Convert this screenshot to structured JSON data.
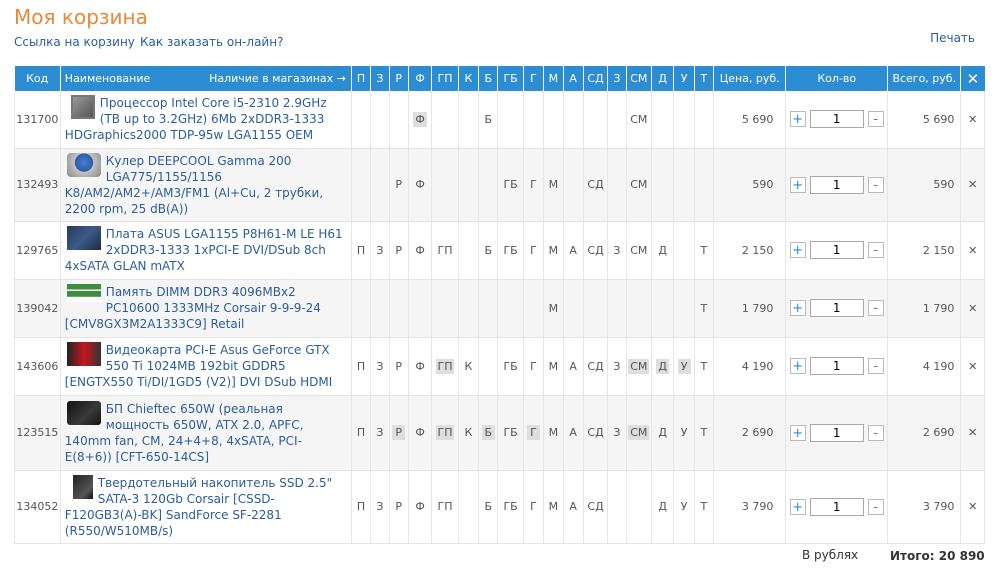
{
  "page": {
    "title": "Моя корзина",
    "cart_link": "Ссылка на корзину",
    "how_to_order": "Как заказать он-лайн?",
    "print": "Печать"
  },
  "table": {
    "headers": {
      "code": "Код",
      "name": "Наименование",
      "availability": "Наличие в магазинах →",
      "stores": [
        "П",
        "З",
        "Р",
        "Ф",
        "ГП",
        "К",
        "Б",
        "ГБ",
        "Г",
        "М",
        "А",
        "СД",
        "З",
        "СМ",
        "Д",
        "У",
        "Т"
      ],
      "price": "Цена, руб.",
      "qty": "Кол-во",
      "total": "Всего, руб.",
      "remove": "✕"
    },
    "rows": [
      {
        "code": "131700",
        "icon": "cpu-icon",
        "name": "Процессор Intel Core i5-2310 2.9GHz (TB up to 3.2GHz) 6Mb 2xDDR3-1333 HDGraphics2000 TDP-95w LGA1155 OEM",
        "stores": [
          "",
          "",
          "",
          "Ф",
          "",
          "",
          "Б",
          "",
          "",
          "",
          "",
          "",
          "",
          "СМ",
          "",
          "",
          ""
        ],
        "hl": [
          3
        ],
        "price": "5 690",
        "qty": "1",
        "total": "5 690"
      },
      {
        "code": "132493",
        "icon": "cooler-icon",
        "name": "Кулер DEEPCOOL Gamma 200 LGA775/1155/1156 K8/AM2/AM2+/AM3/FM1 (Al+Cu, 2 трубки, 2200 rpm, 25 dB(A))",
        "stores": [
          "",
          "",
          "Р",
          "Ф",
          "",
          "",
          "",
          "ГБ",
          "Г",
          "М",
          "",
          "СД",
          "",
          "СМ",
          "",
          "",
          ""
        ],
        "hl": [],
        "price": "590",
        "qty": "1",
        "total": "590"
      },
      {
        "code": "129765",
        "icon": "motherboard-icon",
        "name": "Плата ASUS LGA1155 P8H61-M LE H61 2xDDR3-1333 1xPCI-E DVI/DSub 8ch 4xSATA GLAN mATX",
        "stores": [
          "П",
          "З",
          "Р",
          "Ф",
          "ГП",
          "",
          "Б",
          "ГБ",
          "Г",
          "М",
          "А",
          "СД",
          "З",
          "СМ",
          "Д",
          "",
          "Т"
        ],
        "hl": [],
        "price": "2 150",
        "qty": "1",
        "total": "2 150"
      },
      {
        "code": "139042",
        "icon": "memory-icon",
        "name": "Память DIMM DDR3 4096MBx2 PC10600 1333MHz Corsair 9-9-9-24 [CMV8GX3M2A1333C9] Retail",
        "stores": [
          "",
          "",
          "",
          "",
          "",
          "",
          "",
          "",
          "",
          "М",
          "",
          "",
          "",
          "",
          "",
          "",
          "Т"
        ],
        "hl": [],
        "price": "1 790",
        "qty": "1",
        "total": "1 790"
      },
      {
        "code": "143606",
        "icon": "videocard-icon",
        "name": "Видеокарта PCI-E Asus GeForce GTX 550 Ti 1024MB 192bit GDDR5 [ENGTX550 Ti/DI/1GD5 (V2)] DVI DSub HDMI",
        "stores": [
          "П",
          "З",
          "Р",
          "Ф",
          "ГП",
          "К",
          "",
          "ГБ",
          "Г",
          "М",
          "А",
          "СД",
          "З",
          "СМ",
          "Д",
          "У",
          "Т"
        ],
        "hl": [
          4,
          13,
          14,
          15
        ],
        "price": "4 190",
        "qty": "1",
        "total": "4 190"
      },
      {
        "code": "123515",
        "icon": "psu-icon",
        "name": "БП Chieftec 650W (реальная мощность 650W, ATX 2.0, APFC, 140mm fan, CM, 24+4+8, 4xSATA, PCI-E(8+6)) [CFT-650-14CS]",
        "stores": [
          "П",
          "З",
          "Р",
          "Ф",
          "ГП",
          "К",
          "Б",
          "ГБ",
          "Г",
          "М",
          "А",
          "СД",
          "З",
          "СМ",
          "Д",
          "У",
          "Т"
        ],
        "hl": [
          2,
          4,
          6,
          8,
          13
        ],
        "price": "2 690",
        "qty": "1",
        "total": "2 690"
      },
      {
        "code": "134052",
        "icon": "ssd-icon",
        "name": "Твердотельный накопитель SSD 2.5\" SATA-3 120Gb Corsair [CSSD-F120GB3(A)-BK] SandForce SF-2281 (R550/W510MB/s)",
        "stores": [
          "П",
          "З",
          "Р",
          "Ф",
          "ГП",
          "",
          "Б",
          "ГБ",
          "Г",
          "М",
          "А",
          "СД",
          "",
          "",
          "Д",
          "У",
          "Т"
        ],
        "hl": [],
        "price": "3 790",
        "qty": "1",
        "total": "3 790"
      }
    ],
    "qty_plus": "+",
    "qty_minus": "-",
    "remove_symbol": "✕"
  },
  "footer": {
    "currency_label": "В рублях",
    "total": "Итого: 20 890"
  },
  "colors": {
    "accent": "#2d8dd3",
    "title": "#e8883a",
    "link": "#2a5d9a"
  }
}
